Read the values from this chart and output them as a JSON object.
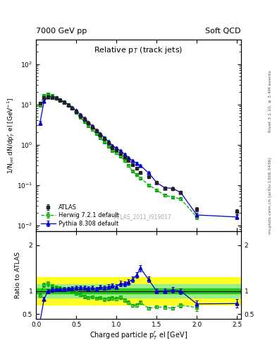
{
  "title_top_left": "7000 GeV pp",
  "title_top_right": "Soft QCD",
  "plot_title": "Relative p$_{T}$ (track jets)",
  "ylabel_main": "1/N$_{jet}$ dN/dp$^{r}_{T}$ el [GeV$^{-1}$]",
  "ylabel_ratio": "Ratio to ATLAS",
  "xlabel": "Charged particle p$^{r}_{T}$ el [GeV]",
  "right_label_top": "Rivet 3.1.10, ≥ 3.4M events",
  "right_label_bottom": "mcplots.cern.ch [arXiv:1306.3436]",
  "watermark": "ATLAS_2011_I919017",
  "atlas_x": [
    0.05,
    0.1,
    0.15,
    0.2,
    0.25,
    0.3,
    0.35,
    0.4,
    0.45,
    0.5,
    0.55,
    0.6,
    0.65,
    0.7,
    0.75,
    0.8,
    0.85,
    0.9,
    0.95,
    1.0,
    1.05,
    1.1,
    1.15,
    1.2,
    1.25,
    1.3,
    1.4,
    1.5,
    1.6,
    1.7,
    1.8,
    2.0,
    2.5
  ],
  "atlas_y": [
    10.5,
    14.5,
    15.5,
    15.0,
    14.0,
    12.5,
    11.0,
    9.5,
    8.0,
    6.5,
    5.2,
    4.2,
    3.4,
    2.7,
    2.2,
    1.7,
    1.4,
    1.1,
    0.85,
    0.75,
    0.6,
    0.5,
    0.4,
    0.32,
    0.26,
    0.2,
    0.16,
    0.115,
    0.085,
    0.08,
    0.065,
    0.025,
    0.022
  ],
  "atlas_yerr": [
    0.5,
    0.7,
    0.7,
    0.6,
    0.6,
    0.5,
    0.5,
    0.4,
    0.3,
    0.3,
    0.25,
    0.2,
    0.15,
    0.12,
    0.1,
    0.08,
    0.07,
    0.05,
    0.04,
    0.04,
    0.03,
    0.025,
    0.02,
    0.016,
    0.013,
    0.01,
    0.008,
    0.006,
    0.005,
    0.005,
    0.004,
    0.003,
    0.003
  ],
  "herwig_x": [
    0.05,
    0.1,
    0.15,
    0.2,
    0.25,
    0.3,
    0.35,
    0.4,
    0.45,
    0.5,
    0.55,
    0.6,
    0.65,
    0.7,
    0.75,
    0.8,
    0.85,
    0.9,
    0.95,
    1.0,
    1.05,
    1.1,
    1.15,
    1.2,
    1.25,
    1.3,
    1.4,
    1.5,
    1.6,
    1.7,
    1.8,
    2.0
  ],
  "herwig_y": [
    9.5,
    16.5,
    18.0,
    16.5,
    15.0,
    13.2,
    11.5,
    9.8,
    8.0,
    6.2,
    4.8,
    3.7,
    2.9,
    2.35,
    1.85,
    1.45,
    1.15,
    0.92,
    0.72,
    0.62,
    0.52,
    0.4,
    0.3,
    0.22,
    0.18,
    0.15,
    0.1,
    0.075,
    0.055,
    0.05,
    0.045,
    0.016
  ],
  "herwig_yerr": [
    0.4,
    0.7,
    0.8,
    0.7,
    0.6,
    0.5,
    0.5,
    0.4,
    0.3,
    0.25,
    0.2,
    0.15,
    0.12,
    0.1,
    0.08,
    0.06,
    0.05,
    0.04,
    0.03,
    0.03,
    0.025,
    0.02,
    0.015,
    0.011,
    0.009,
    0.008,
    0.005,
    0.004,
    0.003,
    0.003,
    0.003,
    0.002
  ],
  "pythia_x": [
    0.05,
    0.1,
    0.15,
    0.2,
    0.25,
    0.3,
    0.35,
    0.4,
    0.45,
    0.5,
    0.55,
    0.6,
    0.65,
    0.7,
    0.75,
    0.8,
    0.85,
    0.9,
    0.95,
    1.0,
    1.05,
    1.1,
    1.15,
    1.2,
    1.25,
    1.3,
    1.4,
    1.5,
    1.6,
    1.7,
    1.8,
    2.0,
    2.5
  ],
  "pythia_y": [
    3.5,
    12.0,
    15.5,
    15.5,
    14.5,
    13.0,
    11.5,
    10.0,
    8.5,
    7.0,
    5.6,
    4.5,
    3.6,
    2.9,
    2.3,
    1.85,
    1.5,
    1.2,
    0.95,
    0.82,
    0.7,
    0.58,
    0.48,
    0.4,
    0.35,
    0.3,
    0.2,
    0.115,
    0.085,
    0.082,
    0.065,
    0.018,
    0.016
  ],
  "pythia_yerr": [
    0.4,
    0.6,
    0.7,
    0.7,
    0.6,
    0.5,
    0.5,
    0.4,
    0.35,
    0.3,
    0.25,
    0.2,
    0.15,
    0.13,
    0.1,
    0.08,
    0.07,
    0.06,
    0.045,
    0.04,
    0.035,
    0.028,
    0.024,
    0.02,
    0.017,
    0.014,
    0.01,
    0.006,
    0.005,
    0.005,
    0.004,
    0.002,
    0.002
  ],
  "xlim": [
    0.0,
    2.55
  ],
  "ylim_main": [
    0.007,
    400
  ],
  "ylim_ratio": [
    0.4,
    2.3
  ],
  "atlas_color": "#222222",
  "herwig_color": "#00aa00",
  "pythia_color": "#0000cc",
  "band_yellow": "#ffff00",
  "band_green_outer": "#90ee90",
  "band_green_inner": "#00bb00"
}
